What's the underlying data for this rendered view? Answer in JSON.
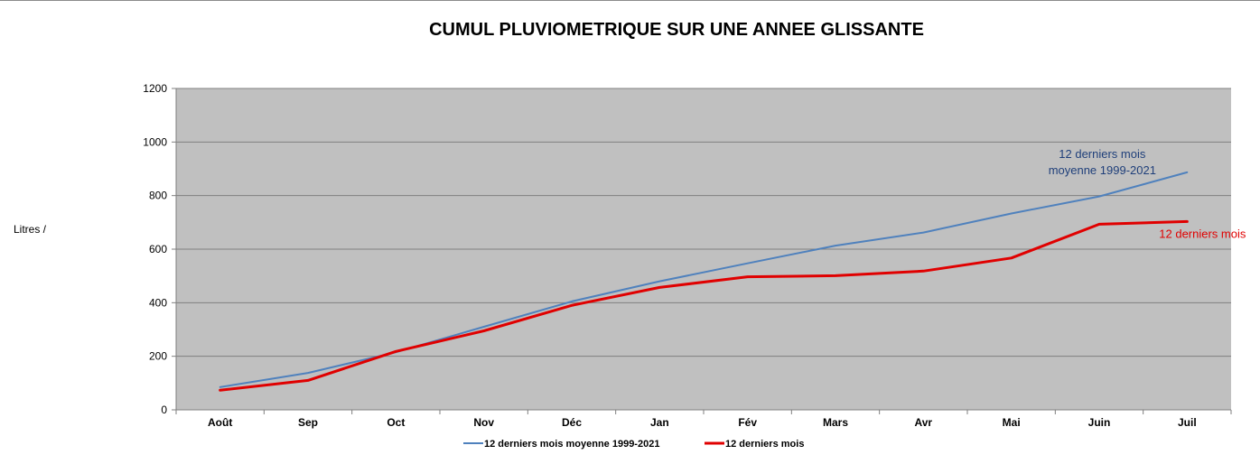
{
  "chart_data": {
    "type": "line",
    "title": "CUMUL PLUVIOMETRIQUE SUR UNE ANNEE GLISSANTE",
    "xlabel": "",
    "ylabel": "Litres /",
    "ylim": [
      0,
      1200
    ],
    "yticks": [
      0,
      200,
      400,
      600,
      800,
      1000,
      1200
    ],
    "grid": true,
    "legend_position": "bottom",
    "plot_background": "#c0c0c0",
    "categories": [
      "Août",
      "Sep",
      "Oct",
      "Nov",
      "Déc",
      "Jan",
      "Fév",
      "Mars",
      "Avr",
      "Mai",
      "Juin",
      "Juil"
    ],
    "series": [
      {
        "name": "12 derniers mois moyenne 1999-2021",
        "color": "#4f81bd",
        "values": [
          85,
          138,
          215,
          310,
          405,
          480,
          547,
          613,
          662,
          733,
          797,
          887
        ]
      },
      {
        "name": "12 derniers mois",
        "color": "#e00000",
        "values": [
          73,
          110,
          218,
          295,
          390,
          457,
          497,
          501,
          518,
          567,
          693,
          703
        ]
      }
    ],
    "annotations": [
      {
        "lines": [
          "12 derniers mois",
          "moyenne 1999-2021"
        ],
        "series": 0,
        "color": "#1f3f7a"
      },
      {
        "lines": [
          "12 derniers mois"
        ],
        "series": 1,
        "color": "#e00000"
      }
    ]
  }
}
